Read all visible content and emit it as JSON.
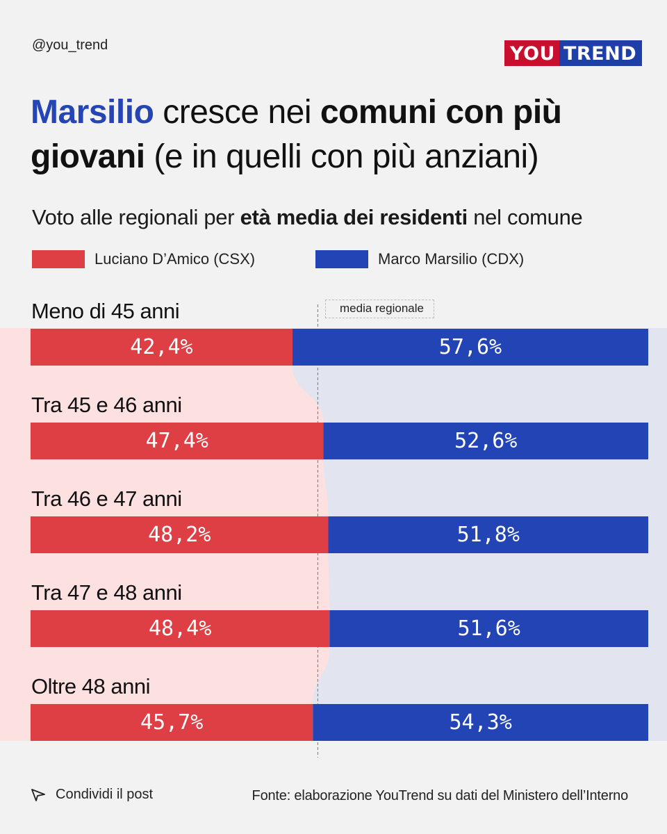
{
  "header": {
    "handle": "@you_trend",
    "logo_you": "YOU",
    "logo_trend": "TREND"
  },
  "title": {
    "part1": "Marsilio",
    "part2": " cresce nei ",
    "part3": "comuni con più giovani",
    "part4": " (e in quelli con più anziani)"
  },
  "subtitle": {
    "pre": "Voto alle regionali per ",
    "bold": "età media dei residenti",
    "post": " nel comune"
  },
  "colors": {
    "csx": "#de3f44",
    "cdx": "#2244b4",
    "csx_bg": "#fde0e0",
    "cdx_bg": "#e2e4ef"
  },
  "chart_data": {
    "type": "bar",
    "stacked": true,
    "orientation": "horizontal",
    "categories": [
      "Meno di 45 anni",
      "Tra 45 e 46 anni",
      "Tra 46 e 47 anni",
      "Tra 47 e 48 anni",
      "Oltre 48 anni"
    ],
    "series": [
      {
        "name": "Luciano D’Amico (CSX)",
        "values": [
          42.4,
          47.4,
          48.2,
          48.4,
          45.7
        ],
        "labels": [
          "42,4%",
          "47,4%",
          "48,2%",
          "48,4%",
          "45,7%"
        ]
      },
      {
        "name": "Marco Marsilio (CDX)",
        "values": [
          57.6,
          52.6,
          51.8,
          51.6,
          54.3
        ],
        "labels": [
          "57,6%",
          "52,6%",
          "51,8%",
          "51,6%",
          "54,3%"
        ]
      }
    ],
    "reference_line": {
      "label": "media regionale",
      "value": 46.5
    },
    "xlim": [
      0,
      100
    ]
  },
  "footer": {
    "share": "Condividi il post",
    "source": "Fonte: elaborazione YouTrend su dati del Ministero dell’Interno"
  }
}
